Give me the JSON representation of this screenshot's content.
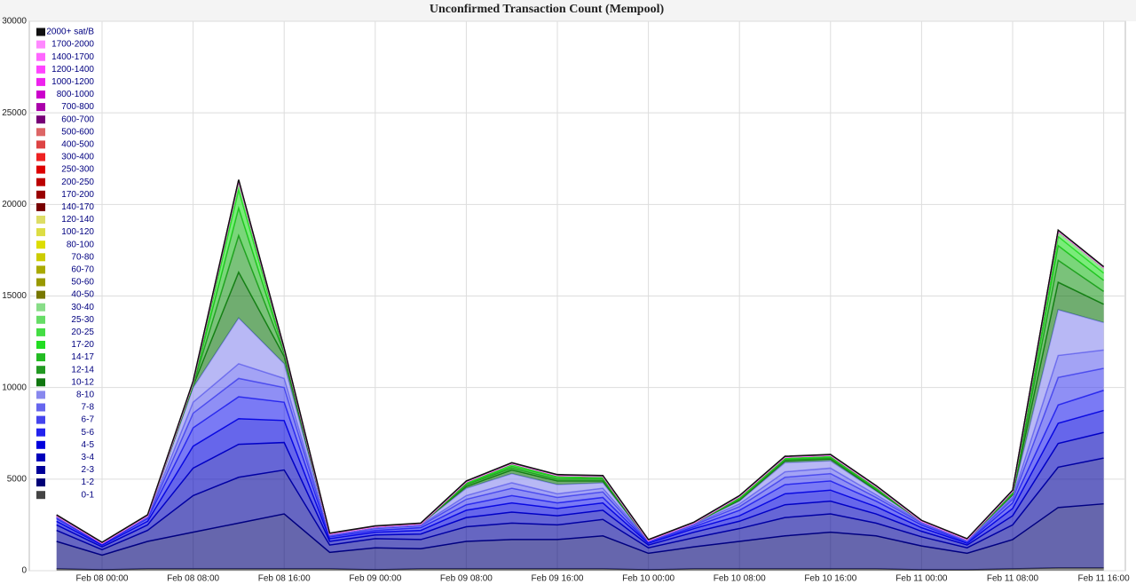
{
  "chart_data": {
    "type": "stacked-area",
    "title": "Unconfirmed Transaction Count (Mempool)",
    "categories": [
      null,
      "Feb 08 00:00",
      null,
      "Feb 08 08:00",
      null,
      "Feb 08 16:00",
      null,
      "Feb 09 00:00",
      null,
      "Feb 09 08:00",
      null,
      "Feb 09 16:00",
      null,
      "Feb 10 00:00",
      null,
      "Feb 10 08:00",
      null,
      "Feb 10 16:00",
      null,
      "Feb 11 00:00",
      null,
      "Feb 11 08:00",
      null,
      "Feb 11 16:00"
    ],
    "ylim": [
      0,
      30000
    ],
    "yticks": [
      0,
      5000,
      10000,
      15000,
      20000,
      25000,
      30000
    ],
    "grid": true,
    "legend": "top-left",
    "series": [
      {
        "name": "0-1",
        "color": "#444444",
        "values": [
          100,
          50,
          100,
          100,
          100,
          100,
          100,
          50,
          100,
          100,
          100,
          100,
          100,
          50,
          100,
          100,
          100,
          100,
          100,
          50,
          50,
          100,
          150,
          150
        ]
      },
      {
        "name": "1-2",
        "color": "#000077",
        "values": [
          1500,
          800,
          1500,
          2000,
          2500,
          3000,
          900,
          1200,
          1100,
          1500,
          1600,
          1600,
          1800,
          900,
          1200,
          1500,
          1800,
          2000,
          1800,
          1300,
          900,
          1600,
          3300,
          3500
        ]
      },
      {
        "name": "2-3",
        "color": "#000099",
        "values": [
          600,
          300,
          600,
          2000,
          2500,
          2400,
          400,
          500,
          500,
          800,
          900,
          800,
          900,
          300,
          500,
          700,
          1000,
          1000,
          700,
          500,
          300,
          800,
          2200,
          2500
        ]
      },
      {
        "name": "3-4",
        "color": "#0000bb",
        "values": [
          300,
          150,
          300,
          1500,
          1800,
          1500,
          200,
          200,
          300,
          500,
          600,
          500,
          500,
          150,
          300,
          400,
          700,
          700,
          500,
          300,
          150,
          500,
          1300,
          1400
        ]
      },
      {
        "name": "4-5",
        "color": "#0000dd",
        "values": [
          200,
          100,
          200,
          1200,
          1400,
          1200,
          150,
          150,
          200,
          400,
          500,
          400,
          400,
          100,
          200,
          300,
          600,
          600,
          400,
          200,
          100,
          400,
          1100,
          1200
        ]
      },
      {
        "name": "5-6",
        "color": "#2222ee",
        "values": [
          150,
          50,
          150,
          1000,
          1200,
          1000,
          100,
          100,
          150,
          300,
          400,
          300,
          300,
          50,
          100,
          300,
          500,
          500,
          300,
          150,
          50,
          300,
          1000,
          1100
        ]
      },
      {
        "name": "6-7",
        "color": "#4444ee",
        "values": [
          50,
          50,
          50,
          800,
          1000,
          800,
          50,
          100,
          100,
          300,
          400,
          300,
          300,
          50,
          100,
          200,
          400,
          400,
          200,
          100,
          50,
          200,
          1500,
          1200
        ]
      },
      {
        "name": "7-8",
        "color": "#6666ee",
        "values": [
          50,
          0,
          50,
          600,
          800,
          500,
          50,
          50,
          50,
          200,
          300,
          200,
          200,
          50,
          50,
          150,
          300,
          300,
          150,
          50,
          50,
          100,
          1200,
          1000
        ]
      },
      {
        "name": "8-10",
        "color": "#8888ee",
        "values": [
          50,
          0,
          50,
          800,
          2500,
          800,
          50,
          50,
          50,
          400,
          500,
          500,
          300,
          0,
          50,
          150,
          500,
          400,
          200,
          50,
          50,
          100,
          2500,
          1500
        ]
      },
      {
        "name": "10-12",
        "color": "#117711",
        "values": [
          0,
          0,
          0,
          100,
          2500,
          400,
          0,
          0,
          0,
          100,
          200,
          200,
          100,
          0,
          0,
          50,
          100,
          100,
          50,
          0,
          0,
          50,
          1500,
          1000
        ]
      },
      {
        "name": "12-14",
        "color": "#229922",
        "values": [
          0,
          0,
          0,
          50,
          2000,
          200,
          0,
          0,
          0,
          100,
          100,
          100,
          100,
          0,
          0,
          50,
          50,
          50,
          50,
          0,
          0,
          50,
          1200,
          700
        ]
      },
      {
        "name": "14-17",
        "color": "#22bb22",
        "values": [
          0,
          0,
          0,
          50,
          1500,
          100,
          0,
          0,
          0,
          50,
          100,
          100,
          50,
          0,
          0,
          50,
          50,
          50,
          50,
          0,
          0,
          50,
          800,
          600
        ]
      },
      {
        "name": "17-20",
        "color": "#22dd22",
        "values": [
          0,
          0,
          0,
          50,
          1000,
          50,
          0,
          0,
          0,
          50,
          100,
          50,
          50,
          0,
          0,
          50,
          50,
          50,
          50,
          0,
          0,
          50,
          500,
          400
        ]
      },
      {
        "name": "20-25",
        "color": "#44dd44",
        "values": [
          0,
          0,
          0,
          50,
          500,
          50,
          0,
          0,
          0,
          50,
          50,
          50,
          50,
          0,
          0,
          50,
          50,
          50,
          50,
          0,
          0,
          50,
          300,
          300
        ]
      },
      {
        "name": "25-30",
        "color": "#66dd66",
        "values": [
          0,
          0,
          0,
          0,
          0,
          0,
          0,
          0,
          0,
          0,
          0,
          0,
          0,
          0,
          0,
          0,
          0,
          0,
          0,
          0,
          0,
          0,
          0,
          0
        ]
      },
      {
        "name": "30-40",
        "color": "#88dd88",
        "values": [
          0,
          0,
          0,
          0,
          0,
          0,
          0,
          0,
          0,
          0,
          0,
          0,
          0,
          0,
          0,
          0,
          0,
          0,
          0,
          0,
          0,
          0,
          0,
          0
        ]
      },
      {
        "name": "40-50",
        "color": "#777700",
        "values": [
          0,
          0,
          0,
          0,
          0,
          0,
          0,
          0,
          0,
          0,
          0,
          0,
          0,
          0,
          0,
          0,
          0,
          0,
          0,
          0,
          0,
          0,
          0,
          0
        ]
      },
      {
        "name": "50-60",
        "color": "#999900",
        "values": [
          0,
          0,
          0,
          0,
          0,
          0,
          0,
          0,
          0,
          0,
          0,
          0,
          0,
          0,
          0,
          0,
          0,
          0,
          0,
          0,
          0,
          0,
          0,
          0
        ]
      },
      {
        "name": "60-70",
        "color": "#aaaa00",
        "values": [
          0,
          0,
          0,
          0,
          0,
          0,
          0,
          0,
          0,
          0,
          0,
          0,
          0,
          0,
          0,
          0,
          0,
          0,
          0,
          0,
          0,
          0,
          0,
          0
        ]
      },
      {
        "name": "70-80",
        "color": "#cccc00",
        "values": [
          0,
          0,
          0,
          0,
          0,
          0,
          0,
          0,
          0,
          0,
          0,
          0,
          0,
          0,
          0,
          0,
          0,
          0,
          0,
          0,
          0,
          0,
          0,
          0
        ]
      },
      {
        "name": "80-100",
        "color": "#dddd00",
        "values": [
          0,
          0,
          0,
          0,
          0,
          0,
          0,
          0,
          0,
          0,
          0,
          0,
          0,
          0,
          0,
          0,
          0,
          0,
          0,
          0,
          0,
          0,
          0,
          0
        ]
      },
      {
        "name": "100-120",
        "color": "#dddd44",
        "values": [
          0,
          0,
          0,
          0,
          0,
          0,
          0,
          0,
          0,
          0,
          0,
          0,
          0,
          0,
          0,
          0,
          0,
          0,
          0,
          0,
          0,
          0,
          0,
          0
        ]
      },
      {
        "name": "120-140",
        "color": "#dddd66",
        "values": [
          0,
          0,
          0,
          0,
          0,
          0,
          0,
          0,
          0,
          0,
          0,
          0,
          0,
          0,
          0,
          0,
          0,
          0,
          0,
          0,
          0,
          0,
          0,
          0
        ]
      },
      {
        "name": "140-170",
        "color": "#770000",
        "values": [
          0,
          0,
          0,
          0,
          0,
          0,
          0,
          0,
          0,
          0,
          0,
          0,
          0,
          0,
          0,
          0,
          0,
          0,
          0,
          0,
          0,
          0,
          0,
          0
        ]
      },
      {
        "name": "170-200",
        "color": "#990000",
        "values": [
          0,
          0,
          0,
          0,
          0,
          0,
          0,
          0,
          0,
          0,
          0,
          0,
          0,
          0,
          0,
          0,
          0,
          0,
          0,
          0,
          0,
          0,
          0,
          0
        ]
      },
      {
        "name": "200-250",
        "color": "#bb0000",
        "values": [
          0,
          0,
          0,
          0,
          0,
          0,
          0,
          0,
          0,
          0,
          0,
          0,
          0,
          0,
          0,
          0,
          0,
          0,
          0,
          0,
          0,
          0,
          0,
          0
        ]
      },
      {
        "name": "250-300",
        "color": "#dd0000",
        "values": [
          0,
          0,
          0,
          0,
          0,
          0,
          0,
          0,
          0,
          0,
          0,
          0,
          0,
          0,
          0,
          0,
          0,
          0,
          0,
          0,
          0,
          0,
          0,
          0
        ]
      },
      {
        "name": "300-400",
        "color": "#ee2222",
        "values": [
          0,
          0,
          0,
          0,
          0,
          0,
          0,
          0,
          0,
          0,
          0,
          0,
          0,
          0,
          0,
          0,
          0,
          0,
          0,
          0,
          0,
          0,
          0,
          0
        ]
      },
      {
        "name": "400-500",
        "color": "#dd4444",
        "values": [
          0,
          0,
          0,
          0,
          0,
          0,
          0,
          0,
          0,
          0,
          0,
          0,
          0,
          0,
          0,
          0,
          0,
          0,
          0,
          0,
          0,
          0,
          0,
          0
        ]
      },
      {
        "name": "500-600",
        "color": "#dd6666",
        "values": [
          0,
          0,
          0,
          0,
          0,
          0,
          0,
          0,
          0,
          0,
          0,
          0,
          0,
          0,
          0,
          0,
          0,
          0,
          0,
          0,
          0,
          0,
          0,
          0
        ]
      },
      {
        "name": "600-700",
        "color": "#770077",
        "values": [
          0,
          0,
          0,
          0,
          0,
          0,
          0,
          0,
          0,
          0,
          0,
          0,
          0,
          0,
          0,
          0,
          0,
          0,
          0,
          0,
          0,
          0,
          0,
          0
        ]
      },
      {
        "name": "700-800",
        "color": "#aa00aa",
        "values": [
          0,
          0,
          0,
          0,
          0,
          0,
          0,
          0,
          0,
          0,
          0,
          0,
          0,
          0,
          0,
          0,
          0,
          0,
          0,
          0,
          0,
          0,
          0,
          0
        ]
      },
      {
        "name": "800-1000",
        "color": "#cc00cc",
        "values": [
          0,
          0,
          0,
          0,
          0,
          0,
          0,
          0,
          0,
          0,
          0,
          0,
          0,
          0,
          0,
          0,
          0,
          0,
          0,
          0,
          0,
          0,
          0,
          0
        ]
      },
      {
        "name": "1000-1200",
        "color": "#ee22ee",
        "values": [
          0,
          0,
          0,
          0,
          0,
          0,
          0,
          0,
          0,
          0,
          0,
          0,
          0,
          0,
          0,
          0,
          0,
          0,
          0,
          0,
          0,
          0,
          0,
          0
        ]
      },
      {
        "name": "1200-1400",
        "color": "#ff44ff",
        "values": [
          0,
          0,
          0,
          0,
          0,
          0,
          0,
          0,
          0,
          0,
          0,
          0,
          0,
          0,
          0,
          0,
          0,
          0,
          0,
          0,
          0,
          0,
          0,
          0
        ]
      },
      {
        "name": "1400-1700",
        "color": "#ff66ff",
        "values": [
          0,
          0,
          0,
          0,
          0,
          0,
          0,
          0,
          0,
          0,
          0,
          0,
          0,
          0,
          0,
          0,
          0,
          0,
          0,
          0,
          0,
          0,
          0,
          0
        ]
      },
      {
        "name": "1700-2000",
        "color": "#ff88ff",
        "values": [
          0,
          0,
          0,
          0,
          0,
          0,
          0,
          0,
          0,
          0,
          0,
          0,
          0,
          0,
          0,
          0,
          0,
          0,
          0,
          0,
          0,
          0,
          0,
          0
        ]
      },
      {
        "name": "2000+ sat/B",
        "color": "#111111",
        "values": [
          50,
          50,
          50,
          50,
          50,
          50,
          50,
          50,
          50,
          50,
          50,
          50,
          50,
          50,
          50,
          50,
          50,
          50,
          50,
          50,
          50,
          50,
          50,
          50
        ]
      }
    ]
  }
}
